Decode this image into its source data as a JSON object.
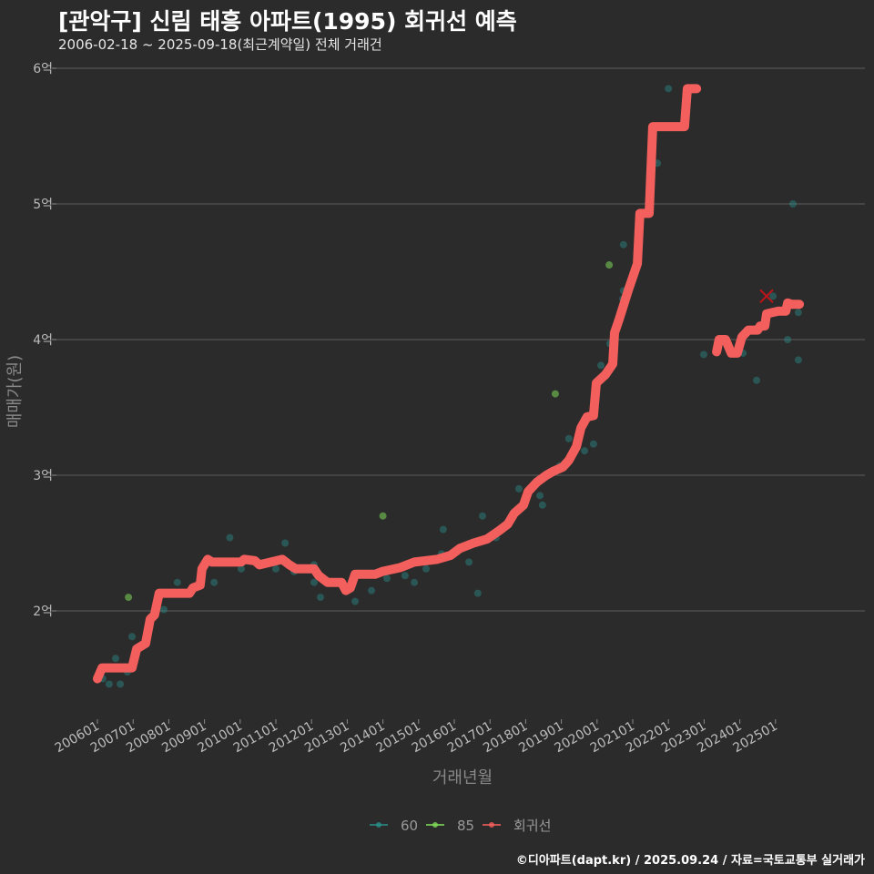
{
  "header": {
    "title": "[관악구] 신림 태흥 아파트(1995) 회귀선 예측",
    "subtitle": "2006-02-18 ~ 2025-09-18(최근계약일) 전체 거래건"
  },
  "footer": {
    "credit": "©디아파트(dapt.kr) / 2025.09.24 / 자료=국토교통부 실거래가"
  },
  "colors": {
    "background": "#2b2b2b",
    "grid": "#5e5e5e",
    "regression": "#f25f5c",
    "s60": "#2a8c8a",
    "s85": "#7ed957"
  },
  "chart_data": {
    "type": "scatter",
    "title": "[관악구] 신림 태흥 아파트(1995) 회귀선 예측",
    "xlabel": "거래년월",
    "ylabel": "매매가(원)",
    "xlim": [
      2005.2,
      2026.5
    ],
    "ylim": [
      1.23,
      6.1
    ],
    "y_unit": "억",
    "yticks": [
      {
        "v": 2,
        "label": "2억"
      },
      {
        "v": 3,
        "label": "3억"
      },
      {
        "v": 4,
        "label": "4억"
      },
      {
        "v": 5,
        "label": "5억"
      },
      {
        "v": 6,
        "label": "6억"
      }
    ],
    "xticks": [
      "200601",
      "200701",
      "200801",
      "200901",
      "201001",
      "201101",
      "201201",
      "201301",
      "201401",
      "201501",
      "201601",
      "201701",
      "201801",
      "201901",
      "202001",
      "202101",
      "202201",
      "202301",
      "202401",
      "202501"
    ],
    "grid": true,
    "legend": {
      "position": "bottom",
      "entries": [
        {
          "key": "s60",
          "label": "60"
        },
        {
          "key": "s85",
          "label": "85"
        },
        {
          "key": "regression",
          "label": "회귀선"
        }
      ]
    },
    "series": [
      {
        "name": "60",
        "key": "s60",
        "points": [
          [
            2006.15,
            1.5
          ],
          [
            2006.33,
            1.46
          ],
          [
            2006.51,
            1.65
          ],
          [
            2006.64,
            1.46
          ],
          [
            2006.84,
            1.55
          ],
          [
            2006.97,
            1.81
          ],
          [
            2007.86,
            2.01
          ],
          [
            2008.24,
            2.21
          ],
          [
            2009.27,
            2.21
          ],
          [
            2009.71,
            2.54
          ],
          [
            2010.03,
            2.31
          ],
          [
            2010.62,
            2.34
          ],
          [
            2011.0,
            2.31
          ],
          [
            2011.26,
            2.5
          ],
          [
            2011.51,
            2.29
          ],
          [
            2012.07,
            2.34
          ],
          [
            2012.07,
            2.21
          ],
          [
            2012.25,
            2.1
          ],
          [
            2013.22,
            2.07
          ],
          [
            2013.68,
            2.15
          ],
          [
            2014.11,
            2.24
          ],
          [
            2014.62,
            2.26
          ],
          [
            2014.88,
            2.21
          ],
          [
            2015.21,
            2.31
          ],
          [
            2015.64,
            2.42
          ],
          [
            2015.69,
            2.6
          ],
          [
            2016.41,
            2.36
          ],
          [
            2016.66,
            2.13
          ],
          [
            2016.79,
            2.7
          ],
          [
            2017.17,
            2.54
          ],
          [
            2017.81,
            2.9
          ],
          [
            2018.4,
            2.85
          ],
          [
            2018.47,
            2.78
          ],
          [
            2018.96,
            3.07
          ],
          [
            2019.19,
            3.11
          ],
          [
            2019.21,
            3.27
          ],
          [
            2019.65,
            3.18
          ],
          [
            2019.9,
            3.23
          ],
          [
            2020.11,
            3.81
          ],
          [
            2020.36,
            3.97
          ],
          [
            2020.72,
            4.3
          ],
          [
            2020.74,
            4.36
          ],
          [
            2020.74,
            4.7
          ],
          [
            2021.69,
            5.3
          ],
          [
            2022.0,
            5.85
          ],
          [
            2022.99,
            3.89
          ],
          [
            2024.09,
            3.9
          ],
          [
            2024.47,
            3.7
          ],
          [
            2024.93,
            4.32
          ],
          [
            2025.34,
            4.0
          ],
          [
            2025.49,
            5.0
          ],
          [
            2025.64,
            4.2
          ],
          [
            2025.64,
            3.85
          ]
        ]
      },
      {
        "name": "85",
        "key": "s85",
        "points": [
          [
            2006.87,
            2.1
          ],
          [
            2014.0,
            2.7
          ],
          [
            2018.83,
            3.6
          ],
          [
            2020.34,
            4.55
          ]
        ]
      },
      {
        "name": "회귀선",
        "key": "regression",
        "segments": [
          [
            [
              2006.0,
              1.5
            ],
            [
              2006.13,
              1.58
            ],
            [
              2006.97,
              1.58
            ],
            [
              2007.1,
              1.72
            ],
            [
              2007.35,
              1.76
            ],
            [
              2007.48,
              1.94
            ],
            [
              2007.6,
              1.97
            ],
            [
              2007.73,
              2.13
            ],
            [
              2008.58,
              2.13
            ],
            [
              2008.68,
              2.17
            ],
            [
              2008.88,
              2.19
            ],
            [
              2008.93,
              2.31
            ],
            [
              2009.09,
              2.38
            ],
            [
              2009.21,
              2.36
            ],
            [
              2010.03,
              2.36
            ],
            [
              2010.11,
              2.38
            ],
            [
              2010.41,
              2.37
            ],
            [
              2010.54,
              2.34
            ],
            [
              2011.18,
              2.38
            ],
            [
              2011.38,
              2.34
            ],
            [
              2011.56,
              2.31
            ],
            [
              2012.07,
              2.31
            ],
            [
              2012.2,
              2.26
            ],
            [
              2012.45,
              2.21
            ],
            [
              2012.84,
              2.21
            ],
            [
              2012.96,
              2.15
            ],
            [
              2013.09,
              2.17
            ],
            [
              2013.22,
              2.27
            ],
            [
              2013.78,
              2.27
            ],
            [
              2013.98,
              2.29
            ],
            [
              2014.49,
              2.32
            ],
            [
              2014.88,
              2.36
            ],
            [
              2015.52,
              2.38
            ],
            [
              2015.9,
              2.41
            ],
            [
              2016.15,
              2.46
            ],
            [
              2016.54,
              2.5
            ],
            [
              2016.92,
              2.53
            ],
            [
              2017.25,
              2.59
            ],
            [
              2017.5,
              2.64
            ],
            [
              2017.68,
              2.72
            ],
            [
              2017.94,
              2.78
            ],
            [
              2018.07,
              2.88
            ],
            [
              2018.32,
              2.95
            ],
            [
              2018.58,
              3.0
            ],
            [
              2018.78,
              3.03
            ],
            [
              2019.04,
              3.06
            ],
            [
              2019.21,
              3.11
            ],
            [
              2019.42,
              3.21
            ],
            [
              2019.55,
              3.35
            ],
            [
              2019.72,
              3.43
            ],
            [
              2019.9,
              3.44
            ],
            [
              2019.98,
              3.68
            ],
            [
              2020.23,
              3.74
            ],
            [
              2020.44,
              3.82
            ],
            [
              2020.49,
              4.05
            ],
            [
              2020.62,
              4.15
            ],
            [
              2020.87,
              4.36
            ],
            [
              2021.13,
              4.56
            ],
            [
              2021.2,
              4.93
            ],
            [
              2021.46,
              4.93
            ],
            [
              2021.56,
              5.57
            ],
            [
              2022.45,
              5.57
            ],
            [
              2022.53,
              5.85
            ],
            [
              2022.79,
              5.85
            ]
          ],
          [
            [
              2023.35,
              3.91
            ],
            [
              2023.42,
              4.0
            ],
            [
              2023.6,
              4.0
            ],
            [
              2023.76,
              3.9
            ],
            [
              2023.93,
              3.9
            ],
            [
              2024.06,
              4.02
            ],
            [
              2024.24,
              4.07
            ],
            [
              2024.5,
              4.07
            ],
            [
              2024.57,
              4.1
            ],
            [
              2024.7,
              4.1
            ],
            [
              2024.75,
              4.19
            ],
            [
              2025.08,
              4.21
            ],
            [
              2025.29,
              4.21
            ],
            [
              2025.34,
              4.27
            ],
            [
              2025.46,
              4.26
            ],
            [
              2025.67,
              4.26
            ]
          ]
        ]
      },
      {
        "name": "marker-x",
        "key": "regression",
        "x_marker": [
          2024.75,
          4.32
        ]
      }
    ]
  }
}
